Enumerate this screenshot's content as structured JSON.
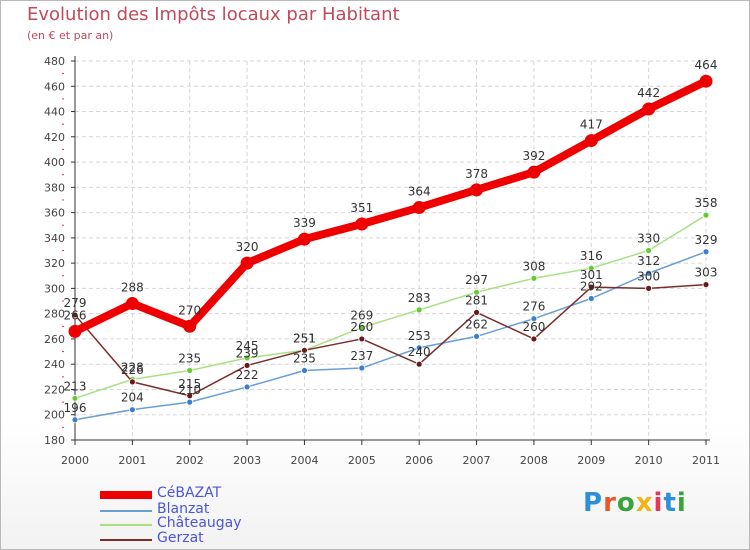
{
  "title": "Evolution des Impôts locaux par Habitant",
  "subtitle": "(en € et par an)",
  "logo_text": "Proxiti",
  "logo_colors": [
    "#2d8fd6",
    "#e65a2a",
    "#3aa33a",
    "#f0b415",
    "#e6365a",
    "#2d8fd6",
    "#3aa33a"
  ],
  "chart_data": {
    "type": "line",
    "title": "Evolution des Impôts locaux par Habitant",
    "subtitle": "(en € et par an)",
    "xlabel": "",
    "ylabel": "",
    "x": [
      "2000",
      "2001",
      "2002",
      "2003",
      "2004",
      "2005",
      "2006",
      "2007",
      "2008",
      "2009",
      "2010",
      "2011"
    ],
    "ylim": [
      180,
      480
    ],
    "yticks": [
      180,
      200,
      220,
      240,
      260,
      280,
      300,
      320,
      340,
      360,
      380,
      400,
      420,
      440,
      460,
      480
    ],
    "grid": true,
    "legend_position": "bottom-left",
    "series": [
      {
        "name": "CéBAZAT",
        "color": "#ee0000",
        "values": [
          266,
          288,
          270,
          320,
          339,
          351,
          364,
          378,
          392,
          417,
          442,
          464
        ]
      },
      {
        "name": "Blanzat",
        "color": "#6a9fd4",
        "values": [
          196,
          204,
          210,
          222,
          235,
          237,
          253,
          262,
          276,
          292,
          312,
          329
        ]
      },
      {
        "name": "Châteaugay",
        "color": "#a8e082",
        "values": [
          213,
          228,
          235,
          245,
          251,
          269,
          283,
          297,
          308,
          316,
          330,
          358
        ]
      },
      {
        "name": "Gerzat",
        "color": "#7a2d2d",
        "values": [
          279,
          226,
          215,
          239,
          251,
          260,
          240,
          281,
          260,
          301,
          300,
          303
        ]
      }
    ]
  }
}
